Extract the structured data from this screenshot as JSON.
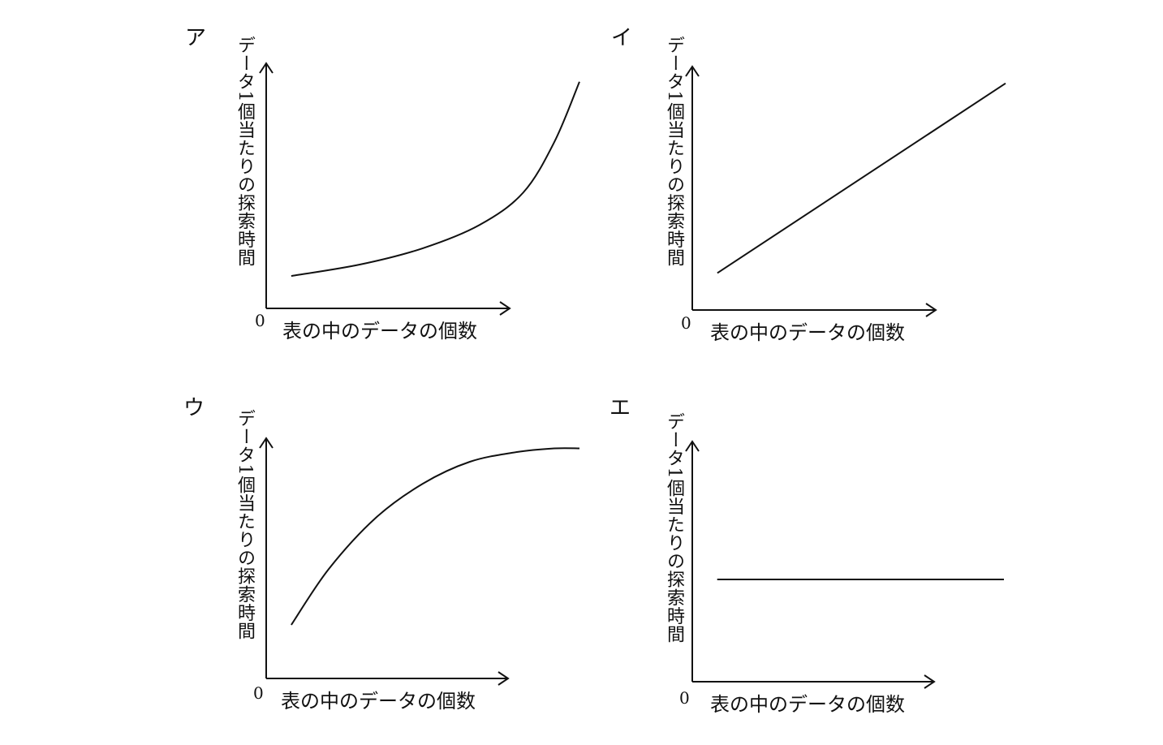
{
  "chart_data": [
    {
      "panel_label": "ア",
      "type": "line",
      "shape": "convex-increasing",
      "xlabel": "表の中のデータの個数",
      "ylabel": "データ1個当たりの探索時間",
      "origin_label": "0",
      "series": [
        {
          "x": [
            0.08,
            0.3,
            0.5,
            0.68,
            0.82,
            0.92,
            1.0
          ],
          "y": [
            0.14,
            0.19,
            0.26,
            0.36,
            0.5,
            0.72,
            0.98
          ]
        }
      ]
    },
    {
      "panel_label": "イ",
      "type": "line",
      "shape": "linear-increasing",
      "xlabel": "表の中のデータの個数",
      "ylabel": "データ1個当たりの探索時間",
      "origin_label": "0",
      "series": [
        {
          "x": [
            0.08,
            1.0
          ],
          "y": [
            0.16,
            0.98
          ]
        }
      ]
    },
    {
      "panel_label": "ウ",
      "type": "line",
      "shape": "concave-increasing-saturating",
      "xlabel": "表の中のデータの個数",
      "ylabel": "データ1個当たりの探索時間",
      "origin_label": "0",
      "series": [
        {
          "x": [
            0.08,
            0.2,
            0.35,
            0.5,
            0.65,
            0.8,
            0.92,
            1.0
          ],
          "y": [
            0.22,
            0.45,
            0.66,
            0.8,
            0.89,
            0.93,
            0.945,
            0.945
          ]
        }
      ]
    },
    {
      "panel_label": "エ",
      "type": "line",
      "shape": "constant",
      "xlabel": "表の中のデータの個数",
      "ylabel": "データ1個当たりの探索時間",
      "origin_label": "0",
      "series": [
        {
          "x": [
            0.08,
            1.0
          ],
          "y": [
            0.42,
            0.42
          ]
        }
      ]
    }
  ]
}
